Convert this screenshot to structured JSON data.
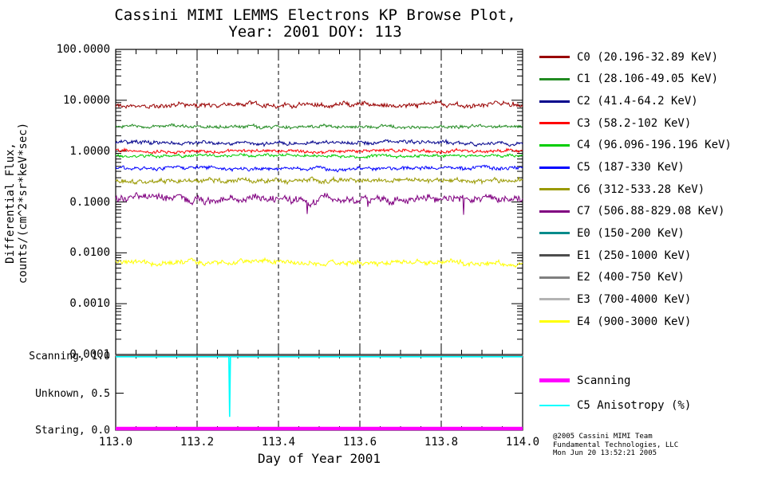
{
  "title": {
    "line1": "Cassini MIMI LEMMS Electrons KP Browse Plot,",
    "line2": "Year: 2001 DOY: 113"
  },
  "axes": {
    "y_title_line1": "Differential Flux,",
    "y_title_line2": "counts/(cm^2*sr*keV*sec)",
    "x_title": "Day of Year 2001",
    "y_ticks": [
      {
        "label": "100.0000",
        "value": 100
      },
      {
        "label": "10.0000",
        "value": 10
      },
      {
        "label": "1.0000",
        "value": 1
      },
      {
        "label": "0.1000",
        "value": 0.1
      },
      {
        "label": "0.0100",
        "value": 0.01
      },
      {
        "label": "0.0010",
        "value": 0.001
      },
      {
        "label": "0.0001",
        "value": 0.0001
      }
    ],
    "x_ticks": [
      {
        "label": "113.0",
        "value": 113.0
      },
      {
        "label": "113.2",
        "value": 113.2
      },
      {
        "label": "113.4",
        "value": 113.4
      },
      {
        "label": "113.6",
        "value": 113.6
      },
      {
        "label": "113.8",
        "value": 113.8
      },
      {
        "label": "114.0",
        "value": 114.0
      }
    ]
  },
  "chart_data": {
    "type": "line",
    "title": "Cassini MIMI LEMMS Electrons KP Browse Plot, Year: 2001 DOY: 113",
    "xlabel": "Day of Year 2001",
    "ylabel": "Differential Flux, counts/(cm^2*sr*keV*sec)",
    "x_range": [
      113.0,
      114.0
    ],
    "y_scale": "log10",
    "y_range": [
      0.0001,
      100.0
    ],
    "grid": "vertical-dashed",
    "legend_position": "right",
    "series": [
      {
        "name": "C0 (20.196-32.89 KeV)",
        "color": "#990000",
        "mean_flux": 8.0,
        "noise_log10": 0.05,
        "spikes": false,
        "visible": true
      },
      {
        "name": "C1 (28.106-49.05 KeV)",
        "color": "#228B22",
        "mean_flux": 3.0,
        "noise_log10": 0.035,
        "spikes": false,
        "visible": true
      },
      {
        "name": "C2 (41.4-64.2 KeV)",
        "color": "#00008B",
        "mean_flux": 1.45,
        "noise_log10": 0.04,
        "spikes": false,
        "visible": true
      },
      {
        "name": "C3 (58.2-102 KeV)",
        "color": "#FF0000",
        "mean_flux": 1.0,
        "noise_log10": 0.035,
        "spikes": false,
        "visible": true
      },
      {
        "name": "C4 (96.096-196.196 KeV)",
        "color": "#00CD00",
        "mean_flux": 0.8,
        "noise_log10": 0.03,
        "spikes": false,
        "visible": true
      },
      {
        "name": "C5 (187-330 KeV)",
        "color": "#0000FF",
        "mean_flux": 0.46,
        "noise_log10": 0.04,
        "spikes": false,
        "visible": true
      },
      {
        "name": "C6 (312-533.28 KeV)",
        "color": "#999900",
        "mean_flux": 0.26,
        "noise_log10": 0.05,
        "spikes": false,
        "visible": true
      },
      {
        "name": "C7 (506.88-829.08 KeV)",
        "color": "#800080",
        "mean_flux": 0.115,
        "noise_log10": 0.08,
        "spikes": true,
        "visible": true
      },
      {
        "name": "E0 (150-200 KeV)",
        "color": "#008B8B",
        "mean_flux": null,
        "noise_log10": 0,
        "spikes": false,
        "visible": false
      },
      {
        "name": "E1 (250-1000 KeV)",
        "color": "#4D4D4D",
        "mean_flux": null,
        "noise_log10": 0,
        "spikes": false,
        "visible": false
      },
      {
        "name": "E2 (400-750 KeV)",
        "color": "#7F7F7F",
        "mean_flux": null,
        "noise_log10": 0,
        "spikes": false,
        "visible": false
      },
      {
        "name": "E3 (700-4000 KeV)",
        "color": "#B3B3B3",
        "mean_flux": null,
        "noise_log10": 0,
        "spikes": false,
        "visible": false
      },
      {
        "name": "E4 (900-3000 KeV)",
        "color": "#FFFF00",
        "mean_flux": 0.0065,
        "noise_log10": 0.05,
        "spikes": false,
        "visible": true
      }
    ],
    "status_panel": {
      "y_ticks": [
        {
          "label": "Scanning, 1.0",
          "value": 1.0
        },
        {
          "label": "Unknown, 0.5",
          "value": 0.5
        },
        {
          "label": "Staring, 0.0",
          "value": 0.0
        }
      ],
      "series": [
        {
          "name": "Scanning",
          "color": "#FF00FF",
          "value": 0.0,
          "style": "thick"
        },
        {
          "name": "C5 Anisotropy (%)",
          "color": "#00FFFF",
          "value": 1.0,
          "style": "thin",
          "dip": {
            "x": 113.28,
            "value": 0.18
          }
        }
      ]
    }
  },
  "credit": {
    "line1": "@2005 Cassini MIMI Team",
    "line2": "Fundamental Technologies, LLC",
    "line3": "Mon Jun 20 13:52:21 2005"
  }
}
